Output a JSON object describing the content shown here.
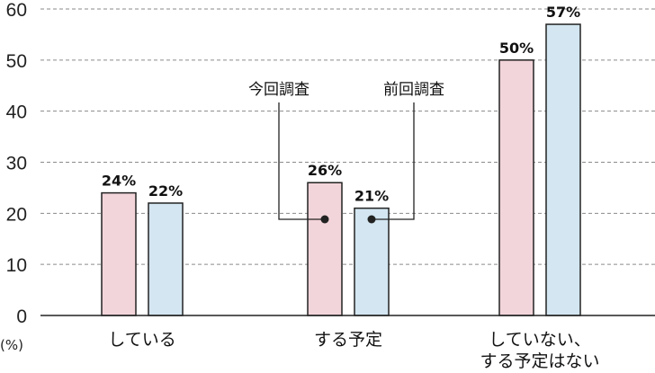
{
  "chart_data": {
    "type": "bar",
    "categories": [
      "している",
      "する予定",
      "していない、\nする予定はない"
    ],
    "series": [
      {
        "name": "今回調査",
        "values": [
          24,
          26,
          50
        ],
        "labels": [
          "24%",
          "26%",
          "50%"
        ],
        "color": "#f2d5da"
      },
      {
        "name": "前回調査",
        "values": [
          22,
          21,
          57
        ],
        "labels": [
          "22%",
          "21%",
          "57%"
        ],
        "color": "#d3e6f1"
      }
    ],
    "ylim": [
      0,
      60
    ],
    "yticks": [
      "0",
      "10",
      "20",
      "30",
      "40",
      "50",
      "60"
    ],
    "ylabel": "(%)",
    "grid": true,
    "legend_placement": "callouts on middle group"
  }
}
